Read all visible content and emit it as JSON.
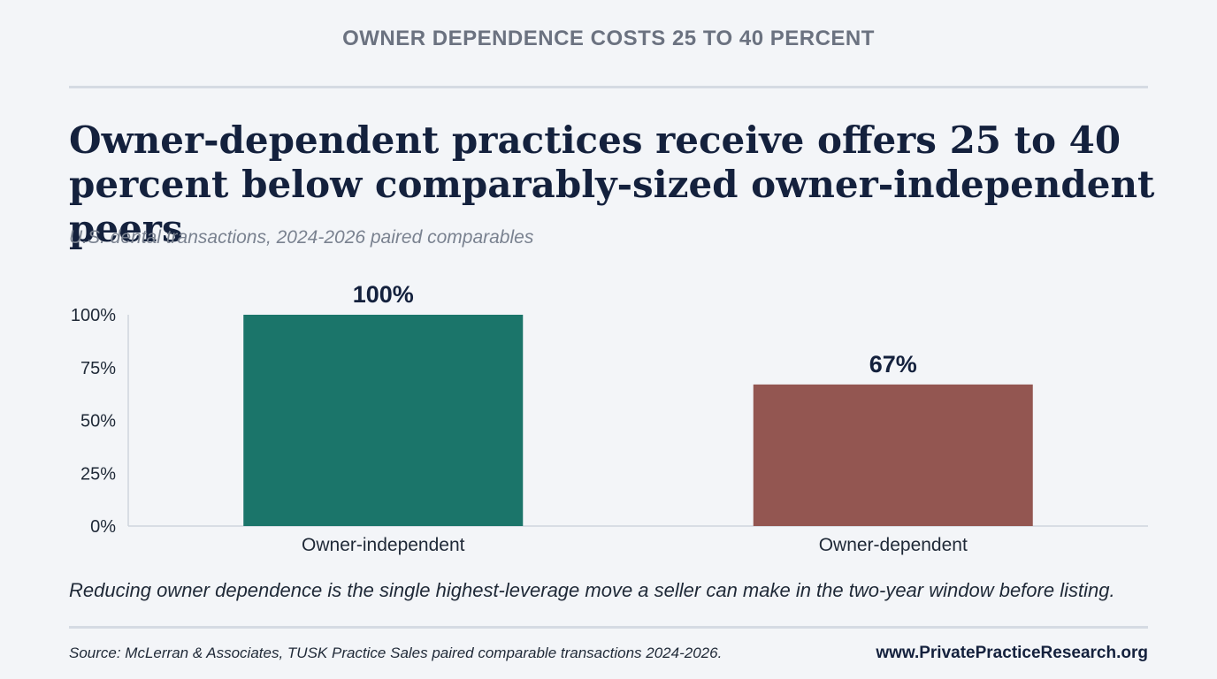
{
  "header": {
    "kicker": "OWNER DEPENDENCE COSTS 25 TO 40 PERCENT",
    "headline": "Owner-dependent practices receive offers 25 to 40 percent below comparably-sized owner-independent peers",
    "subtitle": "U.S. dental transactions, 2024-2026 paired comparables"
  },
  "chart_data": {
    "type": "bar",
    "categories": [
      "Owner-independent",
      "Owner-dependent"
    ],
    "values": [
      100,
      67
    ],
    "data_labels": [
      "100%",
      "67%"
    ],
    "colors": [
      "#1b756a",
      "#935651"
    ],
    "ylim": [
      0,
      100
    ],
    "yticks": [
      0,
      25,
      50,
      75,
      100
    ],
    "ytick_labels": [
      "0%",
      "25%",
      "50%",
      "75%",
      "100%"
    ],
    "grid": false,
    "title": "",
    "xlabel": "",
    "ylabel": ""
  },
  "footer": {
    "takeaway": "Reducing owner dependence is the single highest-leverage move a seller can make in the two-year window before listing.",
    "source": "Source: McLerran & Associates, TUSK Practice Sales paired comparable transactions 2024-2026.",
    "site": "www.PrivatePracticeResearch.org"
  }
}
